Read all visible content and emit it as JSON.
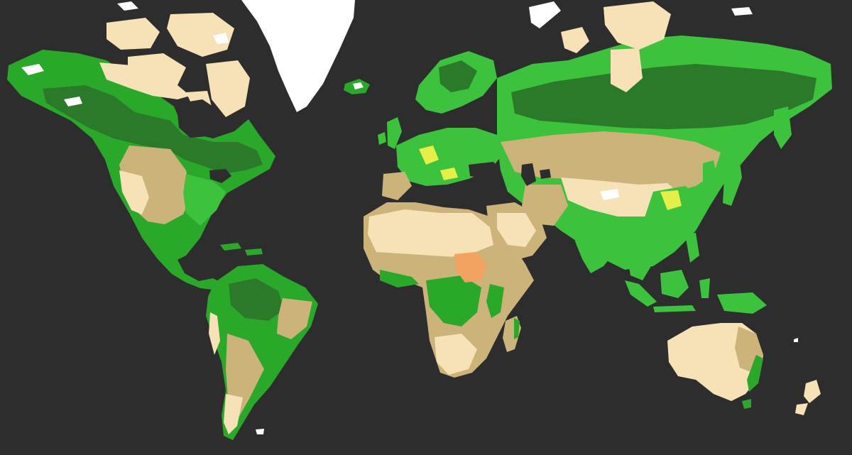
{
  "map": {
    "background": "#2d2d2d",
    "land_cover_palette": {
      "snow_ice": "#ffffff",
      "barren_desert": "#f6e2b6",
      "shrubland_grassland": "#ccb37a",
      "cropland": "#3cc23c",
      "mixed_forest": "#2aa82a",
      "dense_forest": "#2a7a2a",
      "wetland_crop_mosaic": "#e6ef48",
      "sparse_savanna": "#f3a262"
    }
  }
}
